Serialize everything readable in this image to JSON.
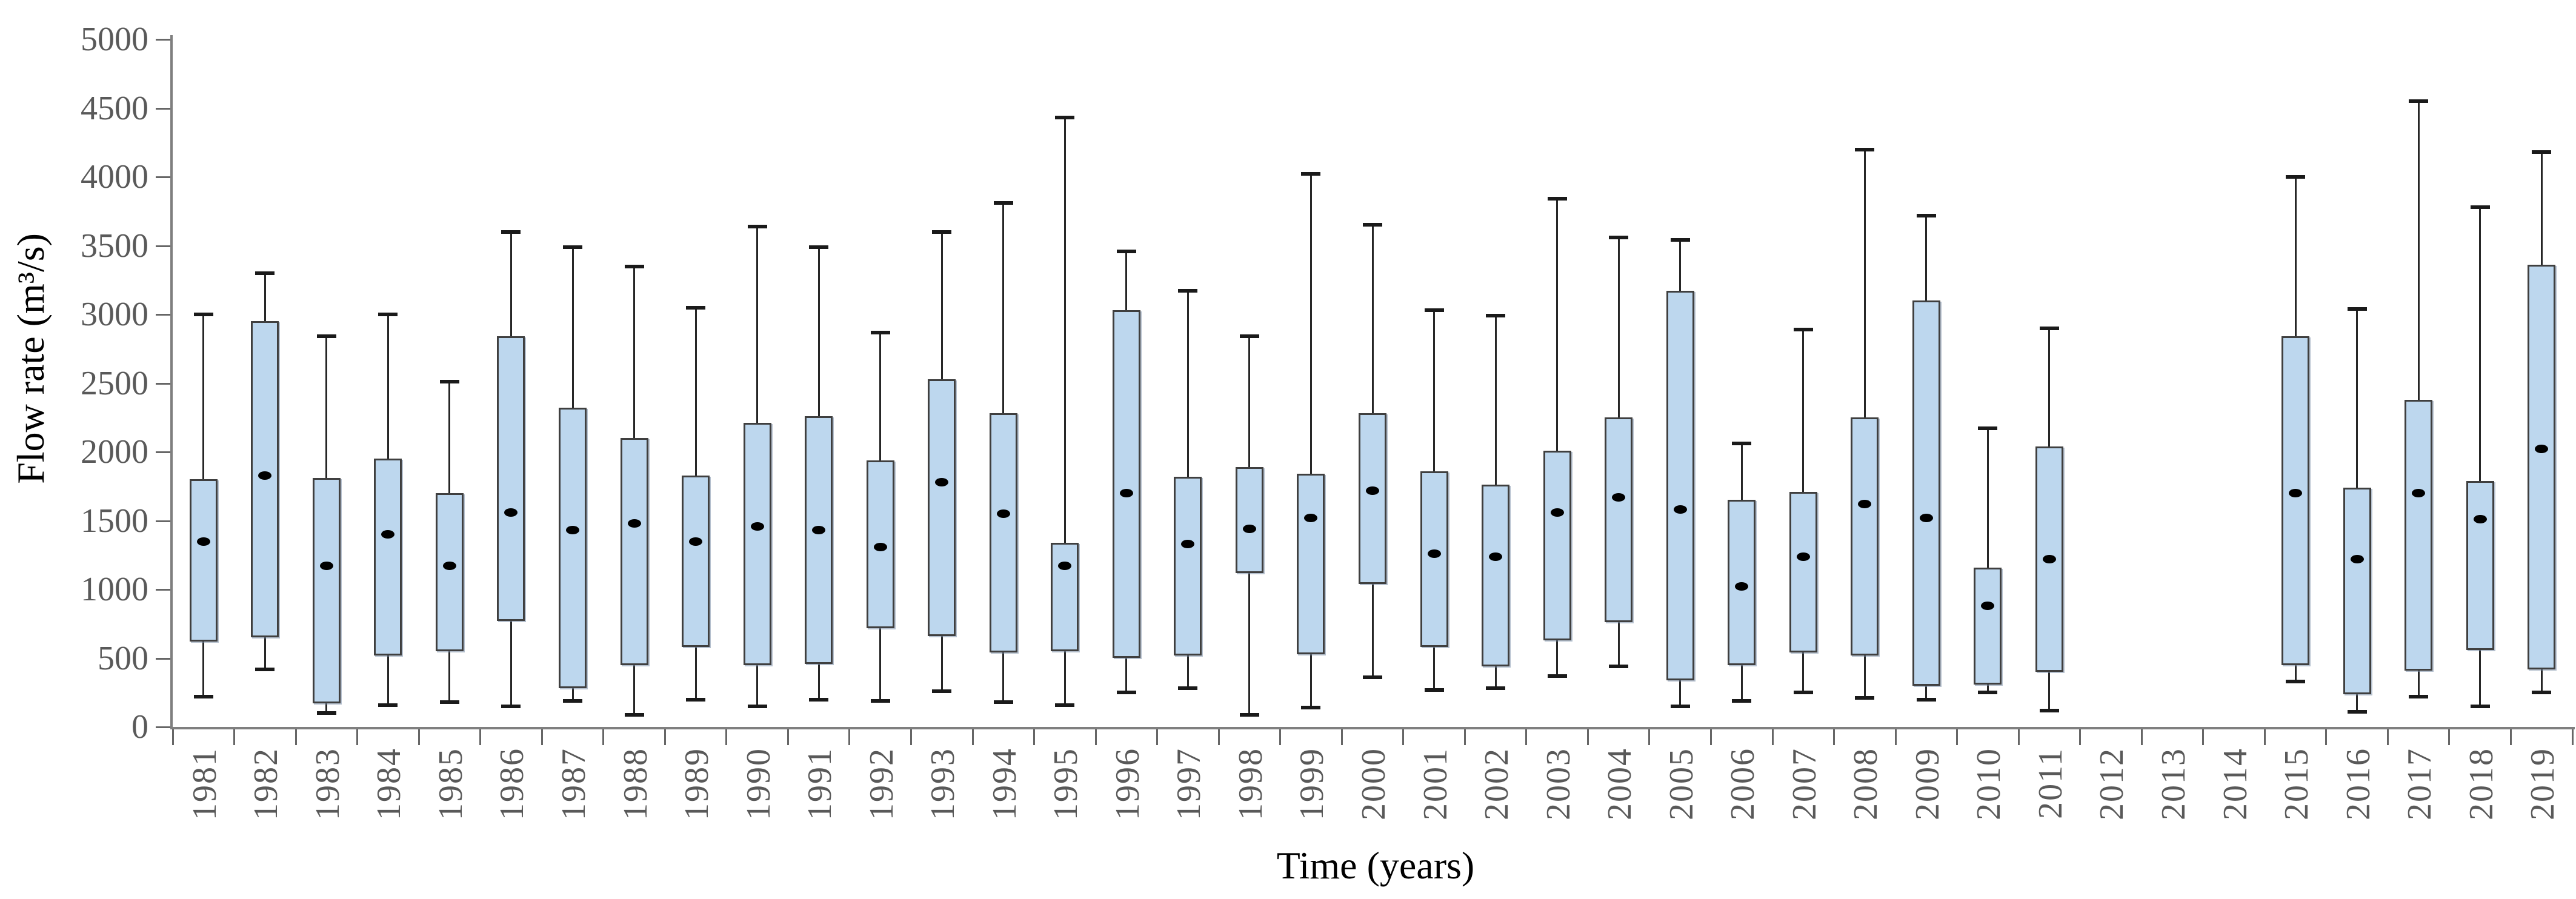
{
  "chart_data": {
    "type": "box",
    "title": "",
    "xlabel": "Time (years)",
    "ylabel": "Flow rate (m³/s)",
    "ylim": [
      0,
      5000
    ],
    "ytick_step": 500,
    "yticks": [
      0,
      500,
      1000,
      1500,
      2000,
      2500,
      3000,
      3500,
      4000,
      4500,
      5000
    ],
    "grid": "off",
    "legend": "none",
    "marker_meaning": "mean",
    "colors": {
      "box_fill": "#bdd7ee",
      "box_border": "#3f3f3f",
      "whisker": "#262626",
      "mean_dot": "#000000",
      "axis_line": "#7f7f7f",
      "tick_label": "#595959",
      "axis_title": "#000000"
    },
    "categories": [
      "1981",
      "1982",
      "1983",
      "1984",
      "1985",
      "1986",
      "1987",
      "1988",
      "1989",
      "1990",
      "1991",
      "1992",
      "1993",
      "1994",
      "1995",
      "1996",
      "1997",
      "1998",
      "1999",
      "2000",
      "2001",
      "2002",
      "2003",
      "2004",
      "2005",
      "2006",
      "2007",
      "2008",
      "2009",
      "2010",
      "2011",
      "2012",
      "2013",
      "2014",
      "2015",
      "2016",
      "2017",
      "2018",
      "2019"
    ],
    "boxes": [
      {
        "year": "1981",
        "low": 220,
        "q1": 620,
        "mean": 1350,
        "q3": 1800,
        "high": 3000
      },
      {
        "year": "1982",
        "low": 420,
        "q1": 650,
        "mean": 1830,
        "q3": 2950,
        "high": 3300
      },
      {
        "year": "1983",
        "low": 100,
        "q1": 170,
        "mean": 1170,
        "q3": 1810,
        "high": 2840
      },
      {
        "year": "1984",
        "low": 160,
        "q1": 520,
        "mean": 1400,
        "q3": 1950,
        "high": 3000
      },
      {
        "year": "1985",
        "low": 180,
        "q1": 550,
        "mean": 1170,
        "q3": 1700,
        "high": 2510
      },
      {
        "year": "1986",
        "low": 150,
        "q1": 770,
        "mean": 1560,
        "q3": 2840,
        "high": 3600
      },
      {
        "year": "1987",
        "low": 190,
        "q1": 280,
        "mean": 1430,
        "q3": 2320,
        "high": 3490
      },
      {
        "year": "1988",
        "low": 90,
        "q1": 450,
        "mean": 1480,
        "q3": 2100,
        "high": 3350
      },
      {
        "year": "1989",
        "low": 200,
        "q1": 580,
        "mean": 1350,
        "q3": 1830,
        "high": 3050
      },
      {
        "year": "1990",
        "low": 150,
        "q1": 450,
        "mean": 1460,
        "q3": 2210,
        "high": 3640
      },
      {
        "year": "1991",
        "low": 200,
        "q1": 460,
        "mean": 1430,
        "q3": 2260,
        "high": 3490
      },
      {
        "year": "1992",
        "low": 190,
        "q1": 720,
        "mean": 1310,
        "q3": 1940,
        "high": 2870
      },
      {
        "year": "1993",
        "low": 260,
        "q1": 660,
        "mean": 1780,
        "q3": 2530,
        "high": 3600
      },
      {
        "year": "1994",
        "low": 180,
        "q1": 540,
        "mean": 1550,
        "q3": 2280,
        "high": 3810
      },
      {
        "year": "1995",
        "low": 160,
        "q1": 550,
        "mean": 1170,
        "q3": 1340,
        "high": 4430
      },
      {
        "year": "1996",
        "low": 250,
        "q1": 500,
        "mean": 1700,
        "q3": 3030,
        "high": 3460
      },
      {
        "year": "1997",
        "low": 280,
        "q1": 520,
        "mean": 1330,
        "q3": 1820,
        "high": 3170
      },
      {
        "year": "1998",
        "low": 90,
        "q1": 1120,
        "mean": 1440,
        "q3": 1890,
        "high": 2840
      },
      {
        "year": "1999",
        "low": 140,
        "q1": 530,
        "mean": 1520,
        "q3": 1840,
        "high": 4020
      },
      {
        "year": "2000",
        "low": 360,
        "q1": 1040,
        "mean": 1720,
        "q3": 2280,
        "high": 3650
      },
      {
        "year": "2001",
        "low": 270,
        "q1": 580,
        "mean": 1260,
        "q3": 1860,
        "high": 3030
      },
      {
        "year": "2002",
        "low": 280,
        "q1": 440,
        "mean": 1240,
        "q3": 1760,
        "high": 2990
      },
      {
        "year": "2003",
        "low": 370,
        "q1": 630,
        "mean": 1560,
        "q3": 2010,
        "high": 3840
      },
      {
        "year": "2004",
        "low": 440,
        "q1": 760,
        "mean": 1670,
        "q3": 2250,
        "high": 3560
      },
      {
        "year": "2005",
        "low": 150,
        "q1": 340,
        "mean": 1580,
        "q3": 3170,
        "high": 3540
      },
      {
        "year": "2006",
        "low": 190,
        "q1": 450,
        "mean": 1020,
        "q3": 1650,
        "high": 2060
      },
      {
        "year": "2007",
        "low": 250,
        "q1": 540,
        "mean": 1240,
        "q3": 1710,
        "high": 2890
      },
      {
        "year": "2008",
        "low": 210,
        "q1": 520,
        "mean": 1620,
        "q3": 2250,
        "high": 4200
      },
      {
        "year": "2009",
        "low": 200,
        "q1": 300,
        "mean": 1520,
        "q3": 3100,
        "high": 3720
      },
      {
        "year": "2010",
        "low": 250,
        "q1": 310,
        "mean": 880,
        "q3": 1160,
        "high": 2170
      },
      {
        "year": "2011",
        "low": 120,
        "q1": 400,
        "mean": 1220,
        "q3": 2040,
        "high": 2900
      },
      {
        "year": "2012",
        "low": null,
        "q1": null,
        "mean": null,
        "q3": null,
        "high": null
      },
      {
        "year": "2013",
        "low": null,
        "q1": null,
        "mean": null,
        "q3": null,
        "high": null
      },
      {
        "year": "2014",
        "low": null,
        "q1": null,
        "mean": null,
        "q3": null,
        "high": null
      },
      {
        "year": "2015",
        "low": 330,
        "q1": 450,
        "mean": 1700,
        "q3": 2840,
        "high": 4000
      },
      {
        "year": "2016",
        "low": 110,
        "q1": 240,
        "mean": 1220,
        "q3": 1740,
        "high": 3040
      },
      {
        "year": "2017",
        "low": 220,
        "q1": 410,
        "mean": 1700,
        "q3": 2380,
        "high": 4550
      },
      {
        "year": "2018",
        "low": 150,
        "q1": 560,
        "mean": 1510,
        "q3": 1790,
        "high": 3780
      },
      {
        "year": "2019",
        "low": 250,
        "q1": 420,
        "mean": 2020,
        "q3": 3360,
        "high": 4180
      }
    ]
  }
}
